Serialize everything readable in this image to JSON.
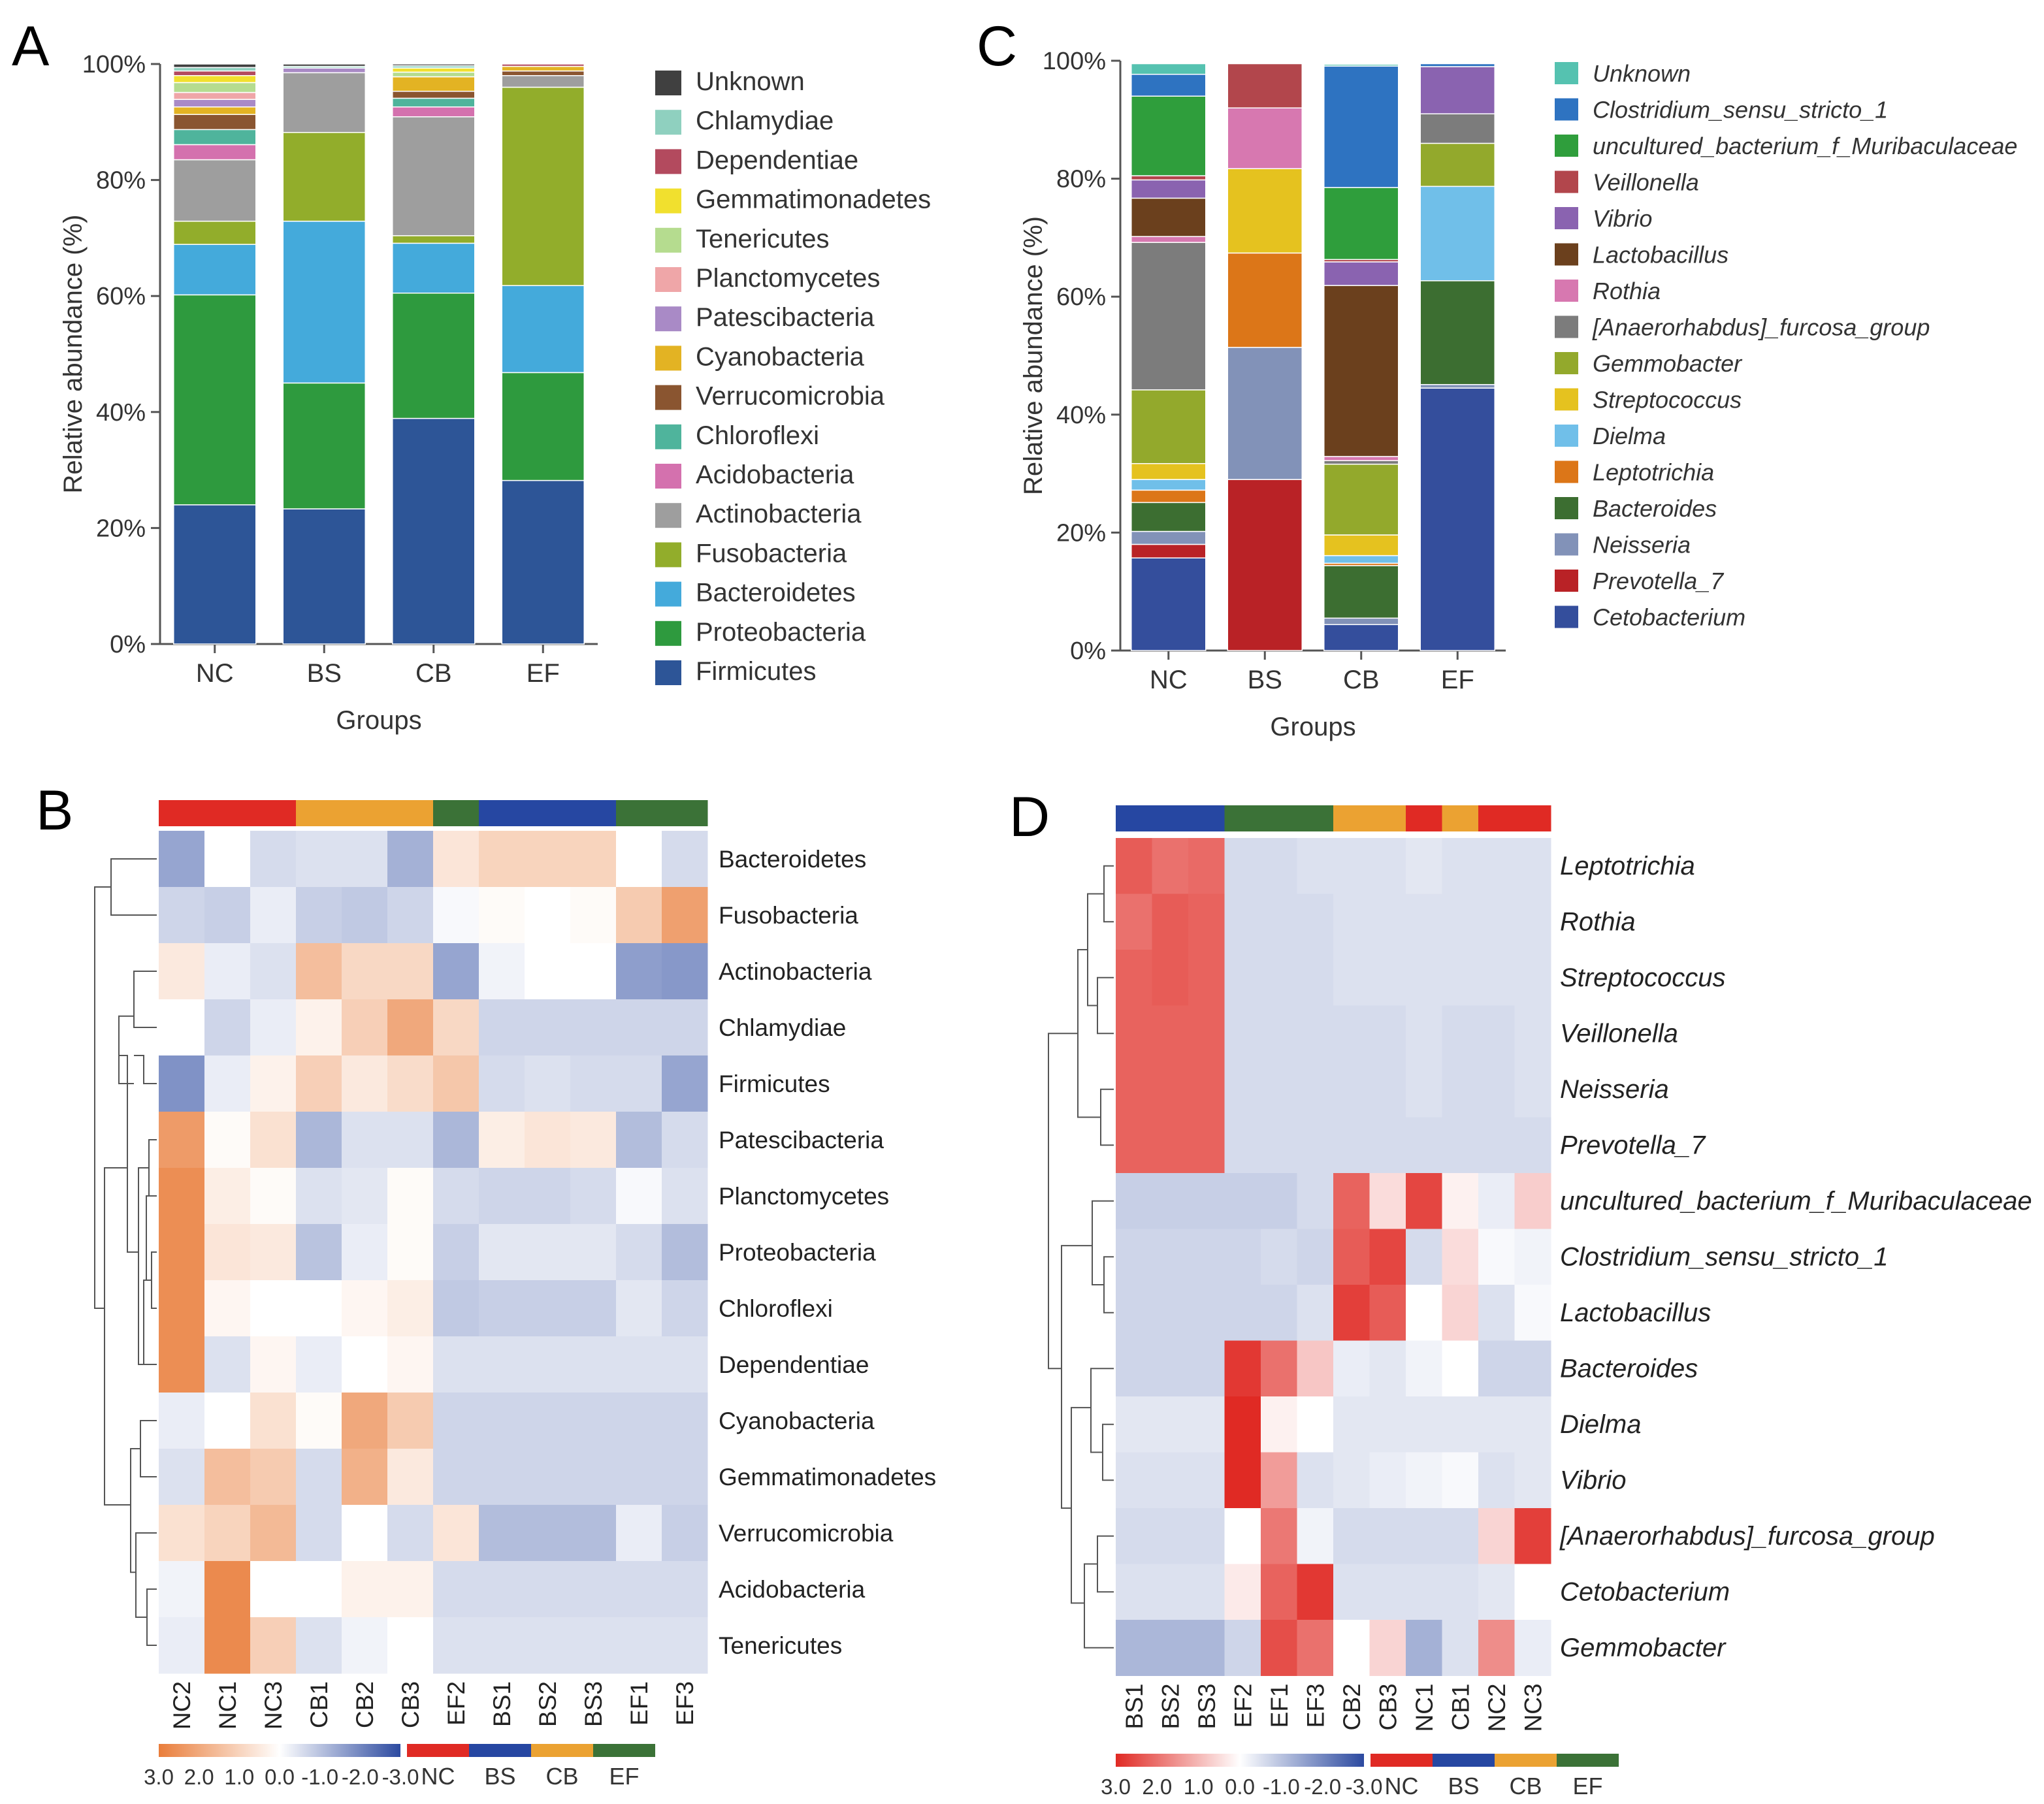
{
  "figure": {
    "panel_labels": [
      "A",
      "B",
      "C",
      "D"
    ],
    "colors": {
      "Unknown_phylum": "#404040",
      "Chlamydiae": "#8fd0bf",
      "Dependentiae": "#b34a5e",
      "Gemmatimonadetes": "#f1e02e",
      "Tenericutes": "#b5dc8f",
      "Planctomycetes": "#efa6a8",
      "Patescibacteria": "#a98ac6",
      "Cyanobacteria": "#e3b323",
      "Verrucomicrobia": "#8a5530",
      "Chloroflexi": "#4fb49c",
      "Acidobacteria": "#d471ae",
      "Actinobacteria": "#9e9e9e",
      "Fusobacteria": "#92ad2b",
      "Bacteroidetes": "#44aadb",
      "Proteobacteria": "#2e9a3e",
      "Firmicutes": "#2d5597",
      "Unknown_genus": "#55c2b0",
      "Clostridium": "#2e73c1",
      "Muribaculaceae": "#2f9e3c",
      "Veillonella": "#b2464c",
      "Vibrio": "#8a63b0",
      "Lactobacillus": "#6b401d",
      "Rothia": "#d778b0",
      "Anaerorhabdus": "#7c7c7c",
      "Gemmobacter": "#93a92c",
      "Streptococcus": "#e5c21f",
      "Dielma": "#70bfe9",
      "Leptotrichia": "#dc7618",
      "Bacteroides": "#3c6e31",
      "Neisseria": "#8292b8",
      "Prevotella": "#b92226",
      "Cetobacterium": "#344e9c",
      "NC": "#e02a24",
      "BS": "#2647a2",
      "CB": "#eba232",
      "EF": "#3b7237",
      "heat_hi_B": "#e97d3a",
      "heat_lo_B": "#2c4aa0",
      "heat_hi_D": "#e02a24",
      "heat_lo_D": "#2c4aa0"
    }
  },
  "chart_data": [
    {
      "id": "A",
      "type": "stacked-bar",
      "title": "",
      "xlabel": "Groups",
      "ylabel": "Relative abundance (%)",
      "ylim": [
        0,
        100
      ],
      "yticks": [
        "0%",
        "20%",
        "40%",
        "60%",
        "80%",
        "100%"
      ],
      "categories": [
        "NC",
        "BS",
        "CB",
        "EF"
      ],
      "legend_position": "right",
      "series": [
        {
          "name": "Firmicutes",
          "color_key": "Firmicutes",
          "values": [
            24,
            23.3,
            38.9,
            28.2
          ]
        },
        {
          "name": "Proteobacteria",
          "color_key": "Proteobacteria",
          "values": [
            36.2,
            21.7,
            21.6,
            18.6
          ]
        },
        {
          "name": "Bacteroidetes",
          "color_key": "Bacteroidetes",
          "values": [
            8.7,
            27.9,
            8.6,
            15
          ]
        },
        {
          "name": "Fusobacteria",
          "color_key": "Fusobacteria",
          "values": [
            4,
            15.3,
            1.3,
            34.2
          ]
        },
        {
          "name": "Actinobacteria",
          "color_key": "Actinobacteria",
          "values": [
            10.6,
            10.3,
            20.5,
            2
          ]
        },
        {
          "name": "Acidobacteria",
          "color_key": "Acidobacteria",
          "values": [
            2.6,
            0,
            1.7,
            0
          ]
        },
        {
          "name": "Chloroflexi",
          "color_key": "Chloroflexi",
          "values": [
            2.6,
            0,
            1.5,
            0
          ]
        },
        {
          "name": "Verrucomicrobia",
          "color_key": "Verrucomicrobia",
          "values": [
            2.6,
            0,
            1.2,
            0.8
          ]
        },
        {
          "name": "Cyanobacteria",
          "color_key": "Cyanobacteria",
          "values": [
            1.3,
            0,
            2.5,
            0.8
          ]
        },
        {
          "name": "Patescibacteria",
          "color_key": "Patescibacteria",
          "values": [
            1.3,
            0.8,
            0,
            0
          ]
        },
        {
          "name": "Planctomycetes",
          "color_key": "Planctomycetes",
          "values": [
            1.2,
            0,
            0,
            0
          ]
        },
        {
          "name": "Tenericutes",
          "color_key": "Tenericutes",
          "values": [
            1.7,
            0,
            0.8,
            0
          ]
        },
        {
          "name": "Gemmatimonadetes",
          "color_key": "Gemmatimonadetes",
          "values": [
            1.2,
            0,
            0.7,
            0
          ]
        },
        {
          "name": "Dependentiae",
          "color_key": "Dependentiae",
          "values": [
            0.8,
            0,
            0,
            0.4
          ]
        },
        {
          "name": "Chlamydiae",
          "color_key": "Chlamydiae",
          "values": [
            0.6,
            0.3,
            0.4,
            0
          ]
        },
        {
          "name": "Unknown",
          "color_key": "Unknown_phylum",
          "values": [
            0.6,
            0.4,
            0.3,
            0
          ]
        }
      ]
    },
    {
      "id": "C",
      "type": "stacked-bar",
      "title": "",
      "xlabel": "Groups",
      "ylabel": "Relative abundance (%)",
      "ylim": [
        0,
        100
      ],
      "yticks": [
        "0%",
        "20%",
        "40%",
        "60%",
        "80%",
        "100%"
      ],
      "categories": [
        "NC",
        "BS",
        "CB",
        "EF"
      ],
      "legend_position": "right",
      "series": [
        {
          "name": "Cetobacterium",
          "color_key": "Cetobacterium",
          "values": [
            15.7,
            0,
            4.4,
            44.5
          ]
        },
        {
          "name": "Prevotella_7",
          "color_key": "Prevotella",
          "values": [
            2.3,
            29,
            0,
            0
          ]
        },
        {
          "name": "Neisseria",
          "color_key": "Neisseria",
          "values": [
            2.2,
            22.4,
            1.1,
            0.6
          ]
        },
        {
          "name": "Bacteroides",
          "color_key": "Bacteroides",
          "values": [
            4.9,
            0,
            8.9,
            17.6
          ]
        },
        {
          "name": "Leptotrichia",
          "color_key": "Leptotrichia",
          "values": [
            2.1,
            16,
            0.4,
            0
          ]
        },
        {
          "name": "Dielma",
          "color_key": "Dielma",
          "values": [
            1.8,
            0,
            1.3,
            16
          ]
        },
        {
          "name": "Streptococcus",
          "color_key": "Streptococcus",
          "values": [
            2.7,
            14.3,
            3.5,
            0
          ]
        },
        {
          "name": "Gemmobacter",
          "color_key": "Gemmobacter",
          "values": [
            12.5,
            0,
            12,
            7.3
          ]
        },
        {
          "name": "[Anaerorhabdus]_furcosa_group",
          "color_key": "Anaerorhabdus",
          "values": [
            25,
            0,
            0.6,
            5
          ]
        },
        {
          "name": "Rothia",
          "color_key": "Rothia",
          "values": [
            1,
            10.3,
            0.7,
            0
          ]
        },
        {
          "name": "Lactobacillus",
          "color_key": "Lactobacillus",
          "values": [
            6.5,
            0,
            29,
            0
          ]
        },
        {
          "name": "Vibrio",
          "color_key": "Vibrio",
          "values": [
            3.1,
            0,
            4,
            8
          ]
        },
        {
          "name": "Veillonella",
          "color_key": "Veillonella",
          "values": [
            0.7,
            7.5,
            0.4,
            0
          ]
        },
        {
          "name": "uncultured_bacterium_f_Muribaculaceae",
          "color_key": "Muribaculaceae",
          "values": [
            13.5,
            0,
            12.2,
            0
          ]
        },
        {
          "name": "Clostridium_sensu_stricto_1",
          "color_key": "Clostridium",
          "values": [
            3.7,
            0,
            20.6,
            0.5
          ]
        },
        {
          "name": "Unknown",
          "color_key": "Unknown_genus",
          "values": [
            1.8,
            0,
            0.3,
            0
          ]
        }
      ]
    },
    {
      "id": "B",
      "type": "heatmap",
      "columns": [
        "NC2",
        "NC1",
        "NC3",
        "CB1",
        "CB2",
        "CB3",
        "EF2",
        "BS1",
        "BS2",
        "BS3",
        "EF1",
        "EF3"
      ],
      "column_groups": [
        "NC",
        "NC",
        "NC",
        "CB",
        "CB",
        "CB",
        "EF",
        "BS",
        "BS",
        "BS",
        "EF",
        "EF"
      ],
      "rows": [
        "Bacteroidetes",
        "Fusobacteria",
        "Actinobacteria",
        "Chlamydiae",
        "Firmicutes",
        "Patescibacteria",
        "Planctomycetes",
        "Proteobacteria",
        "Chloroflexi",
        "Dependentiae",
        "Cyanobacteria",
        "Gemmatimonadetes",
        "Verrucomicrobia",
        "Acidobacteria",
        "Tenericutes"
      ],
      "color_scale": {
        "min": -3,
        "max": 3,
        "ticks": [
          "3.0",
          "2.0",
          "1.0",
          "0.0",
          "-1.0",
          "-2.0",
          "-3.0"
        ]
      },
      "group_legend": [
        "NC",
        "BS",
        "CB",
        "EF"
      ],
      "values": [
        [
          -1.5,
          0,
          -0.6,
          -0.5,
          -0.5,
          -1.3,
          0.6,
          1,
          1,
          1,
          0,
          -0.6
        ],
        [
          -0.7,
          -0.8,
          -0.3,
          -0.8,
          -0.9,
          -0.7,
          -0.1,
          0.1,
          0,
          0.1,
          1.2,
          2.2
        ],
        [
          0.5,
          -0.3,
          -0.5,
          1.5,
          0.9,
          0.9,
          -1.5,
          -0.2,
          0,
          0,
          -1.6,
          -1.7
        ],
        [
          0,
          -0.7,
          -0.3,
          0.3,
          1.1,
          2,
          0.9,
          -0.7,
          -0.7,
          -0.7,
          -0.7,
          -0.7
        ],
        [
          -1.8,
          -0.3,
          0.3,
          1.1,
          0.5,
          0.8,
          1.3,
          -0.6,
          -0.5,
          -0.6,
          -0.6,
          -1.5
        ],
        [
          2.3,
          0.1,
          0.7,
          -1.2,
          -0.5,
          -0.5,
          -1.2,
          0.4,
          0.6,
          0.5,
          -1.1,
          -0.6
        ],
        [
          2.6,
          0.4,
          0.1,
          -0.5,
          -0.4,
          0.1,
          -0.6,
          -0.7,
          -0.7,
          -0.6,
          -0.1,
          -0.5
        ],
        [
          2.6,
          0.6,
          0.5,
          -1,
          -0.3,
          0.1,
          -0.8,
          -0.4,
          -0.4,
          -0.4,
          -0.6,
          -1.1
        ],
        [
          2.6,
          0.2,
          0,
          0,
          0.2,
          0.4,
          -0.9,
          -0.8,
          -0.8,
          -0.8,
          -0.4,
          -0.7
        ],
        [
          2.6,
          -0.5,
          0.2,
          -0.3,
          0,
          0.2,
          -0.5,
          -0.5,
          -0.5,
          -0.5,
          -0.5,
          -0.5
        ],
        [
          -0.3,
          0,
          0.7,
          0.1,
          2,
          1.2,
          -0.7,
          -0.7,
          -0.7,
          -0.7,
          -0.7,
          -0.7
        ],
        [
          -0.5,
          1.5,
          1.2,
          -0.6,
          1.8,
          0.5,
          -0.7,
          -0.7,
          -0.7,
          -0.7,
          -0.7,
          -0.7
        ],
        [
          0.7,
          1,
          1.6,
          -0.6,
          0,
          -0.6,
          0.6,
          -1.1,
          -1.1,
          -1.1,
          -0.3,
          -0.8
        ],
        [
          -0.2,
          2.7,
          0,
          0,
          0.3,
          0.3,
          -0.6,
          -0.6,
          -0.6,
          -0.6,
          -0.6,
          -0.6
        ],
        [
          -0.3,
          2.7,
          1.1,
          -0.5,
          -0.2,
          0,
          -0.5,
          -0.5,
          -0.5,
          -0.5,
          -0.5,
          -0.5
        ]
      ]
    },
    {
      "id": "D",
      "type": "heatmap",
      "columns": [
        "BS1",
        "BS2",
        "BS3",
        "EF2",
        "EF1",
        "EF3",
        "CB2",
        "CB3",
        "NC1",
        "CB1",
        "NC2",
        "NC3"
      ],
      "column_groups": [
        "BS",
        "BS",
        "BS",
        "EF",
        "EF",
        "EF",
        "CB",
        "CB",
        "NC",
        "CB",
        "NC",
        "NC"
      ],
      "rows": [
        "Leptotrichia",
        "Rothia",
        "Streptococcus",
        "Veillonella",
        "Neisseria",
        "Prevotella_7",
        "uncultured_bacterium_f_Muribaculaceae",
        "Clostridium_sensu_stricto_1",
        "Lactobacillus",
        "Bacteroides",
        "Dielma",
        "Vibrio",
        "[Anaerorhabdus]_furcosa_group",
        "Cetobacterium",
        "Gemmobacter"
      ],
      "color_scale": {
        "min": -3,
        "max": 3,
        "ticks": [
          "3.0",
          "2.0",
          "1.0",
          "0.0",
          "-1.0",
          "-2.0",
          "-3.0"
        ]
      },
      "group_legend": [
        "NC",
        "BS",
        "CB",
        "EF"
      ],
      "values": [
        [
          2.3,
          2,
          2.1,
          -0.6,
          -0.6,
          -0.5,
          -0.5,
          -0.5,
          -0.4,
          -0.5,
          -0.5,
          -0.5
        ],
        [
          2,
          2.3,
          2.2,
          -0.6,
          -0.6,
          -0.6,
          -0.5,
          -0.5,
          -0.5,
          -0.5,
          -0.5,
          -0.5
        ],
        [
          2.2,
          2.3,
          2.2,
          -0.6,
          -0.6,
          -0.6,
          -0.5,
          -0.5,
          -0.5,
          -0.5,
          -0.5,
          -0.5
        ],
        [
          2.2,
          2.2,
          2.2,
          -0.6,
          -0.6,
          -0.6,
          -0.6,
          -0.6,
          -0.5,
          -0.6,
          -0.6,
          -0.5
        ],
        [
          2.2,
          2.2,
          2.2,
          -0.6,
          -0.6,
          -0.6,
          -0.6,
          -0.6,
          -0.5,
          -0.6,
          -0.6,
          -0.5
        ],
        [
          2.2,
          2.2,
          2.2,
          -0.6,
          -0.6,
          -0.6,
          -0.6,
          -0.6,
          -0.6,
          -0.6,
          -0.6,
          -0.6
        ],
        [
          -0.8,
          -0.8,
          -0.8,
          -0.8,
          -0.8,
          -0.6,
          2.2,
          0.5,
          2.6,
          0.2,
          -0.3,
          0.7
        ],
        [
          -0.7,
          -0.7,
          -0.7,
          -0.7,
          -0.6,
          -0.7,
          2.3,
          2.6,
          -0.6,
          0.5,
          -0.1,
          -0.2
        ],
        [
          -0.7,
          -0.7,
          -0.7,
          -0.7,
          -0.7,
          -0.5,
          2.7,
          2.3,
          0,
          0.6,
          -0.5,
          -0.1
        ],
        [
          -0.7,
          -0.7,
          -0.7,
          2.8,
          2,
          0.8,
          -0.3,
          -0.4,
          -0.2,
          0,
          -0.7,
          -0.7
        ],
        [
          -0.4,
          -0.4,
          -0.4,
          3,
          0.2,
          0,
          -0.4,
          -0.4,
          -0.4,
          -0.4,
          -0.4,
          -0.4
        ],
        [
          -0.5,
          -0.5,
          -0.5,
          3,
          1.4,
          -0.5,
          -0.4,
          -0.3,
          -0.2,
          -0.1,
          -0.5,
          -0.4
        ],
        [
          -0.6,
          -0.6,
          -0.6,
          0,
          1.9,
          -0.2,
          -0.6,
          -0.6,
          -0.6,
          -0.6,
          0.6,
          2.7
        ],
        [
          -0.5,
          -0.5,
          -0.5,
          0.3,
          2.2,
          2.8,
          -0.5,
          -0.5,
          -0.5,
          -0.5,
          -0.4,
          0
        ],
        [
          -1.2,
          -1.2,
          -1.2,
          -0.7,
          2.5,
          2,
          0,
          0.6,
          -1.3,
          -0.5,
          1.6,
          -0.3
        ]
      ]
    }
  ]
}
